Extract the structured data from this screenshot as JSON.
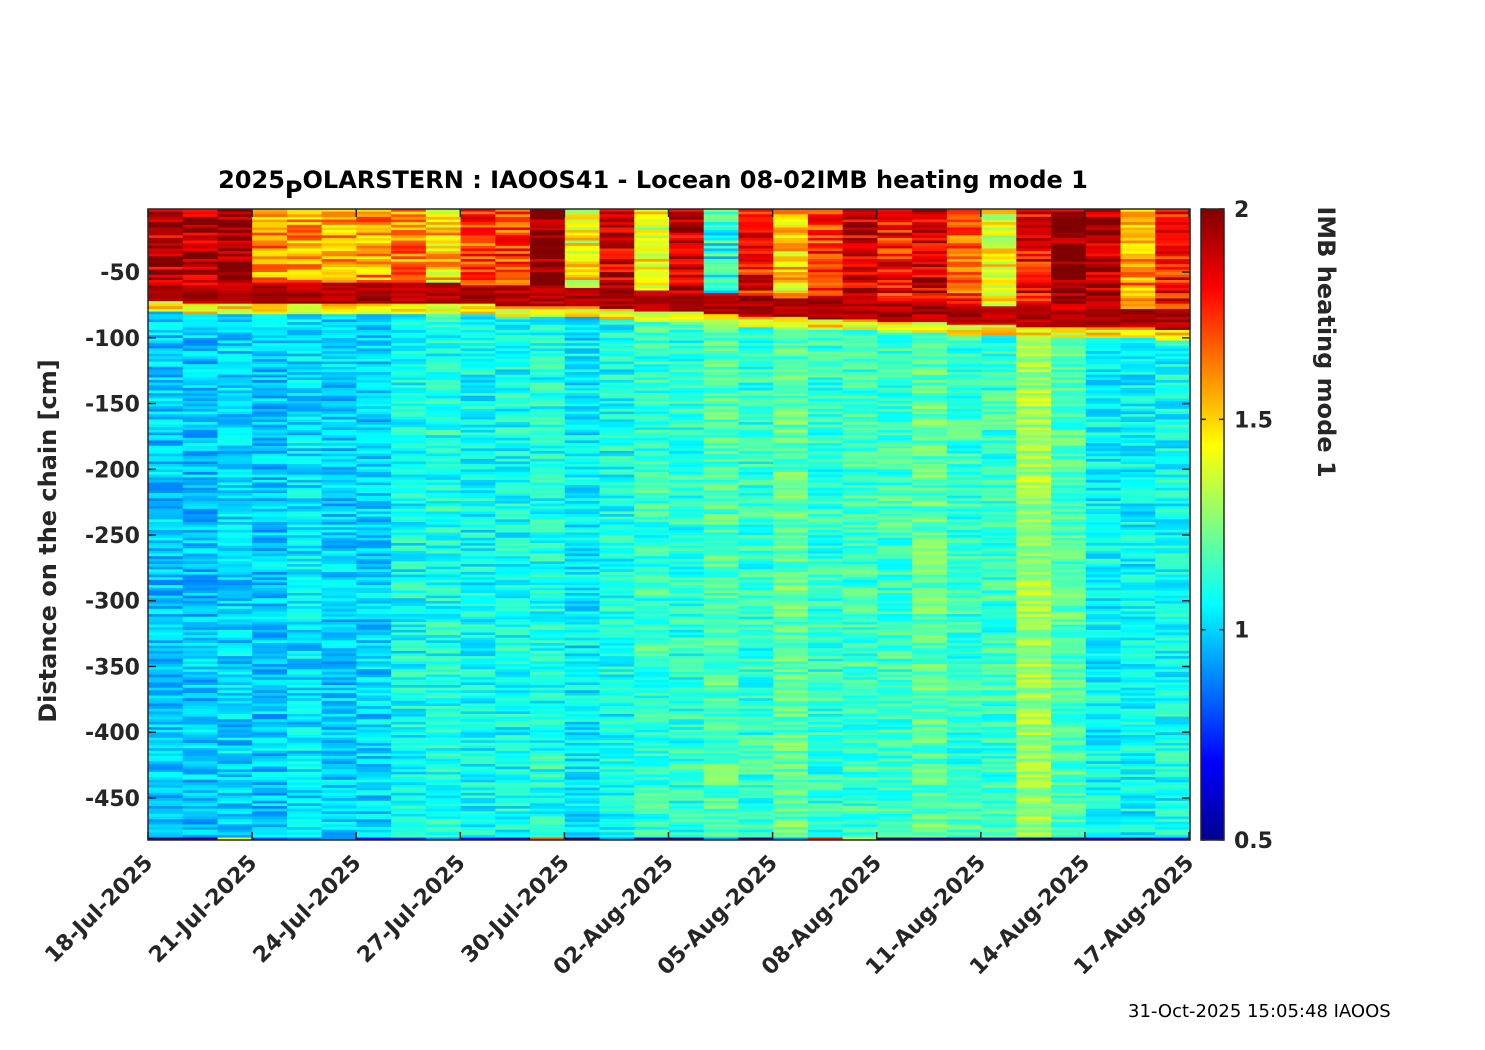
{
  "chart_data": {
    "type": "heatmap",
    "title": {
      "prefix": "2025",
      "subscript": "P",
      "rest": "OLARSTERN : IAOOS41 - Locean 08-02IMB heating mode 1"
    },
    "xlabel": "",
    "ylabel": "Distance on the chain [cm]",
    "x_range": [
      "2025-07-18",
      "2025-08-17"
    ],
    "x_tick_labels": [
      "18-Jul-2025",
      "21-Jul-2025",
      "24-Jul-2025",
      "27-Jul-2025",
      "30-Jul-2025",
      "02-Aug-2025",
      "05-Aug-2025",
      "08-Aug-2025",
      "11-Aug-2025",
      "14-Aug-2025",
      "17-Aug-2025"
    ],
    "x_tick_dates": [
      "2025-07-18",
      "2025-07-21",
      "2025-07-24",
      "2025-07-27",
      "2025-07-30",
      "2025-08-02",
      "2025-08-05",
      "2025-08-08",
      "2025-08-11",
      "2025-08-14",
      "2025-08-17"
    ],
    "ylim": [
      -482,
      -2
    ],
    "y_ticks": [
      -50,
      -100,
      -150,
      -200,
      -250,
      -300,
      -350,
      -400,
      -450
    ],
    "y_tick_labels": [
      "-50",
      "-100",
      "-150",
      "-200",
      "-250",
      "-300",
      "-350",
      "-400",
      "-450"
    ],
    "colorbar": {
      "label": "IMB heating mode 1",
      "clim": [
        0.5,
        2
      ],
      "ticks": [
        0.5,
        1,
        1.5,
        2
      ],
      "tick_labels": [
        "0.5",
        "1",
        "1.5",
        "2"
      ],
      "colormap": "jet"
    },
    "day_columns": {
      "top_layer_bottom_cm": [
        -72,
        -74,
        -73,
        -73,
        -73,
        -73,
        -73,
        -73,
        -73,
        -74,
        -75,
        -75,
        -76,
        -77,
        -79,
        -80,
        -81,
        -83,
        -84,
        -85,
        -86,
        -87,
        -88,
        -89,
        -90,
        -91,
        -92,
        -92,
        -92,
        -93
      ],
      "top_layer_mean_value": [
        1.92,
        1.92,
        2.0,
        1.6,
        1.6,
        1.55,
        1.6,
        1.62,
        1.5,
        1.72,
        1.7,
        2.0,
        1.45,
        1.9,
        1.4,
        1.88,
        1.1,
        1.78,
        1.5,
        1.75,
        1.9,
        1.78,
        1.9,
        1.7,
        1.4,
        1.8,
        1.97,
        1.95,
        1.6,
        1.8
      ],
      "transition_value": 1.45,
      "deep_layer_mean_value": [
        0.98,
        0.98,
        1.0,
        0.98,
        1.02,
        0.99,
        1.0,
        1.08,
        1.1,
        1.07,
        1.08,
        1.1,
        1.04,
        1.08,
        1.14,
        1.12,
        1.18,
        1.13,
        1.2,
        1.13,
        1.15,
        1.15,
        1.2,
        1.14,
        1.14,
        1.3,
        1.18,
        1.06,
        1.06,
        1.08
      ],
      "bottom_row_value": [
        0.5,
        0.5,
        1.4,
        0.8,
        0.85,
        0.9,
        0.7,
        0.75,
        0.9,
        0.7,
        0.6,
        1.7,
        0.5,
        0.9,
        0.6,
        0.5,
        0.9,
        0.5,
        0.9,
        1.8,
        1.3,
        0.5,
        0.6,
        0.5,
        0.6,
        0.5,
        0.5,
        0.6,
        0.5,
        0.7
      ]
    }
  },
  "footer": {
    "timestamp": "31-Oct-2025 15:05:48 IAOOS"
  }
}
